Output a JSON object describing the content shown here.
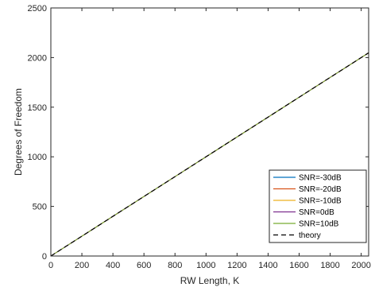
{
  "chart_data": {
    "type": "line",
    "title": "",
    "xlabel": "RW Length, K",
    "ylabel": "Degrees of Freedom",
    "xlim": [
      0,
      2048
    ],
    "ylim": [
      0,
      2500
    ],
    "xticks": [
      0,
      200,
      400,
      600,
      800,
      1000,
      1200,
      1400,
      1600,
      1800,
      2000
    ],
    "yticks": [
      0,
      500,
      1000,
      1500,
      2000,
      2500
    ],
    "grid": false,
    "legend_position": "bottom-right",
    "series": [
      {
        "name": "SNR=-30dB",
        "color": "#0072BD",
        "dash": "solid",
        "x": [
          0,
          2048
        ],
        "y": [
          0,
          2048
        ]
      },
      {
        "name": "SNR=-20dB",
        "color": "#D95319",
        "dash": "solid",
        "x": [
          0,
          2048
        ],
        "y": [
          0,
          2048
        ]
      },
      {
        "name": "SNR=-10dB",
        "color": "#EDB120",
        "dash": "solid",
        "x": [
          0,
          2048
        ],
        "y": [
          0,
          2048
        ]
      },
      {
        "name": "SNR=0dB",
        "color": "#7E2F8E",
        "dash": "solid",
        "x": [
          0,
          2048
        ],
        "y": [
          0,
          2048
        ]
      },
      {
        "name": "SNR=10dB",
        "color": "#77AC30",
        "dash": "solid",
        "x": [
          0,
          2048
        ],
        "y": [
          0,
          2048
        ]
      },
      {
        "name": "theory",
        "color": "#000000",
        "dash": "dashed",
        "x": [
          0,
          2048
        ],
        "y": [
          0,
          2048
        ]
      }
    ]
  }
}
